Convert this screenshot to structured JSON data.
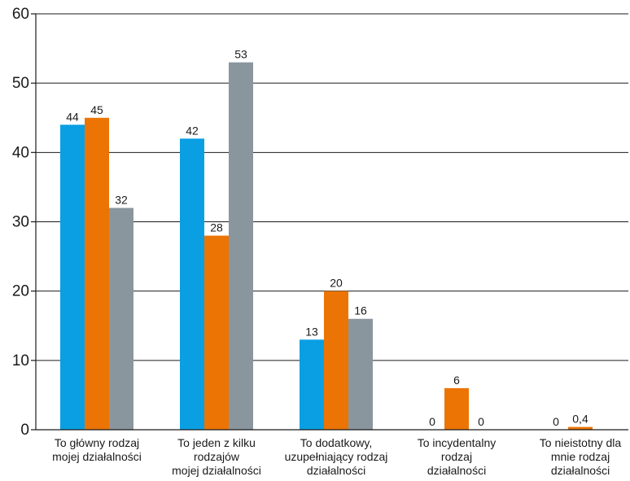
{
  "chart_data": {
    "type": "bar",
    "categories": [
      [
        "To główny rodzaj",
        "mojej działalności"
      ],
      [
        "To jeden z kilku",
        "rodzajów",
        "mojej działalności"
      ],
      [
        "To dodatkowy,",
        "uzupełniający rodzaj",
        "działalności"
      ],
      [
        "To incydentalny",
        "rodzaj",
        "działalności"
      ],
      [
        "To nieistotny dla",
        "mnie rodzaj",
        "działalności"
      ]
    ],
    "series": [
      {
        "values": [
          44,
          42,
          13,
          0,
          0
        ],
        "color": "#0a9fe3"
      },
      {
        "values": [
          45,
          28,
          20,
          6,
          0.4
        ],
        "color": "#ec7404"
      },
      {
        "values": [
          32,
          53,
          16,
          0,
          null
        ],
        "color": "#8a969e"
      }
    ],
    "data_labels": [
      [
        "44",
        "42",
        "13",
        "0",
        "0"
      ],
      [
        "45",
        "28",
        "20",
        "6",
        "0,4"
      ],
      [
        "32",
        "53",
        "16",
        "0",
        ""
      ]
    ],
    "ylim": [
      0,
      60
    ],
    "yticks": [
      0,
      10,
      20,
      30,
      40,
      50,
      60
    ],
    "grid": true,
    "title": "",
    "xlabel": "",
    "ylabel": ""
  }
}
